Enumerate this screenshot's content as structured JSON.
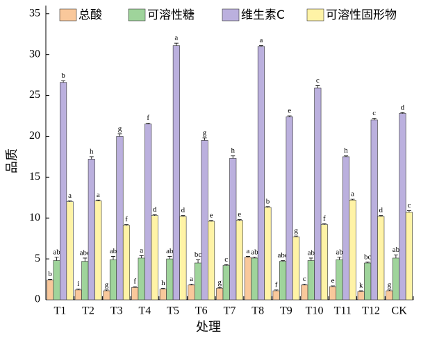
{
  "chart_data": {
    "type": "bar",
    "x_label": "处理",
    "y_label": "品质",
    "categories": [
      "T1",
      "T2",
      "T3",
      "T4",
      "T5",
      "T6",
      "T7",
      "T8",
      "T9",
      "T10",
      "T11",
      "T12",
      "CK"
    ],
    "ylim": [
      0,
      36
    ],
    "yticks": [
      0,
      5,
      10,
      15,
      20,
      25,
      30,
      35
    ],
    "series": [
      {
        "name": "总酸",
        "color": "#f9c89b",
        "values": [
          2.4,
          1.2,
          1.1,
          1.5,
          1.3,
          1.8,
          1.4,
          5.2,
          1.1,
          1.8,
          1.6,
          1.0,
          1.1
        ],
        "errors": [
          0.1,
          0.1,
          0.1,
          0.1,
          0.1,
          0.1,
          0.1,
          0.1,
          0.1,
          0.1,
          0.1,
          0.1,
          0.1
        ],
        "letters": [
          "b",
          "i",
          "g",
          "f",
          "h",
          "a",
          "g",
          "a",
          "f",
          "c",
          "e",
          "k",
          "g"
        ]
      },
      {
        "name": "可溶性糖",
        "color": "#9fd49b",
        "values": [
          4.8,
          4.7,
          4.9,
          5.1,
          5.0,
          4.5,
          4.2,
          5.1,
          4.7,
          4.8,
          4.9,
          4.5,
          5.1
        ],
        "errors": [
          0.4,
          0.4,
          0.4,
          0.3,
          0.3,
          0.4,
          0.1,
          0.1,
          0.1,
          0.3,
          0.3,
          0.1,
          0.4
        ],
        "letters": [
          "ab",
          "abc",
          "ab",
          "a",
          "ab",
          "bc",
          "c",
          "ab",
          "abc",
          "ab",
          "ab",
          "bc",
          "ab"
        ]
      },
      {
        "name": "维生素C",
        "color": "#bbb0de",
        "values": [
          26.6,
          17.2,
          20.0,
          21.5,
          31.1,
          19.5,
          17.3,
          31.0,
          22.4,
          25.9,
          17.5,
          22.0,
          22.8
        ],
        "errors": [
          0.2,
          0.3,
          0.3,
          0.1,
          0.3,
          0.3,
          0.3,
          0.1,
          0.1,
          0.3,
          0.1,
          0.2,
          0.1
        ],
        "letters": [
          "b",
          "h",
          "g",
          "f",
          "a",
          "g",
          "h",
          "a",
          "e",
          "c",
          "h",
          "c",
          "d"
        ]
      },
      {
        "name": "可溶性固形物",
        "color": "#fff3a6",
        "values": [
          12.0,
          12.1,
          9.1,
          10.3,
          10.2,
          9.6,
          9.7,
          11.3,
          7.7,
          9.2,
          12.2,
          10.2,
          10.7
        ],
        "errors": [
          0.1,
          0.1,
          0.1,
          0.1,
          0.1,
          0.1,
          0.1,
          0.1,
          0.1,
          0.1,
          0.1,
          0.1,
          0.2
        ],
        "letters": [
          "a",
          "a",
          "f",
          "d",
          "d",
          "e",
          "e",
          "b",
          "g",
          "f",
          "a",
          "d",
          "c"
        ]
      }
    ]
  }
}
